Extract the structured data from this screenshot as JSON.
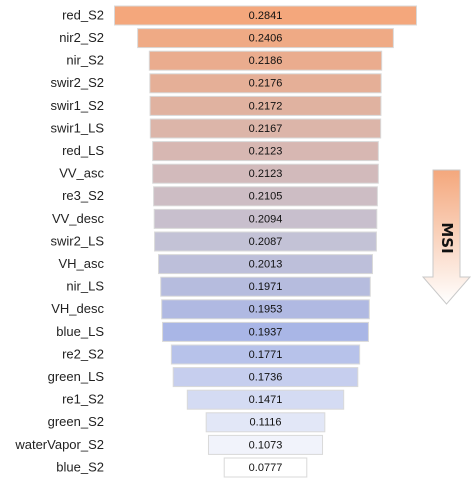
{
  "chart_data": {
    "type": "bar",
    "orientation": "horizontal",
    "layout": "centered-funnel",
    "categories": [
      "red_S2",
      "nir2_S2",
      "nir_S2",
      "swir2_S2",
      "swir1_S2",
      "swir1_LS",
      "red_LS",
      "VV_asc",
      "re3_S2",
      "VV_desc",
      "swir2_LS",
      "VH_asc",
      "nir_LS",
      "VH_desc",
      "blue_LS",
      "re2_S2",
      "green_LS",
      "re1_S2",
      "green_S2",
      "waterVapor_S2",
      "blue_S2"
    ],
    "values": [
      0.2841,
      0.2406,
      0.2186,
      0.2176,
      0.2172,
      0.2167,
      0.2123,
      0.2123,
      0.2105,
      0.2094,
      0.2087,
      0.2013,
      0.1971,
      0.1953,
      0.1937,
      0.1771,
      0.1736,
      0.1471,
      0.1116,
      0.1073,
      0.0777
    ],
    "value_labels": [
      "0.2841",
      "0.2406",
      "0.2186",
      "0.2176",
      "0.2172",
      "0.2167",
      "0.2123",
      "0.2123",
      "0.2105",
      "0.2094",
      "0.2087",
      "0.2013",
      "0.1971",
      "0.1953",
      "0.1937",
      "0.1771",
      "0.1736",
      "0.1471",
      "0.1116",
      "0.1073",
      "0.0777"
    ],
    "colors": {
      "top": "#f4a77c",
      "middle": "#c3c2d6",
      "lower": "#a9b6e6",
      "bottom": "#ffffff",
      "border": "#d9d9d9"
    },
    "indicator": {
      "label": "MSI",
      "direction": "down",
      "gradient_top": "#f4a77c",
      "gradient_bottom": "#ffffff"
    }
  }
}
